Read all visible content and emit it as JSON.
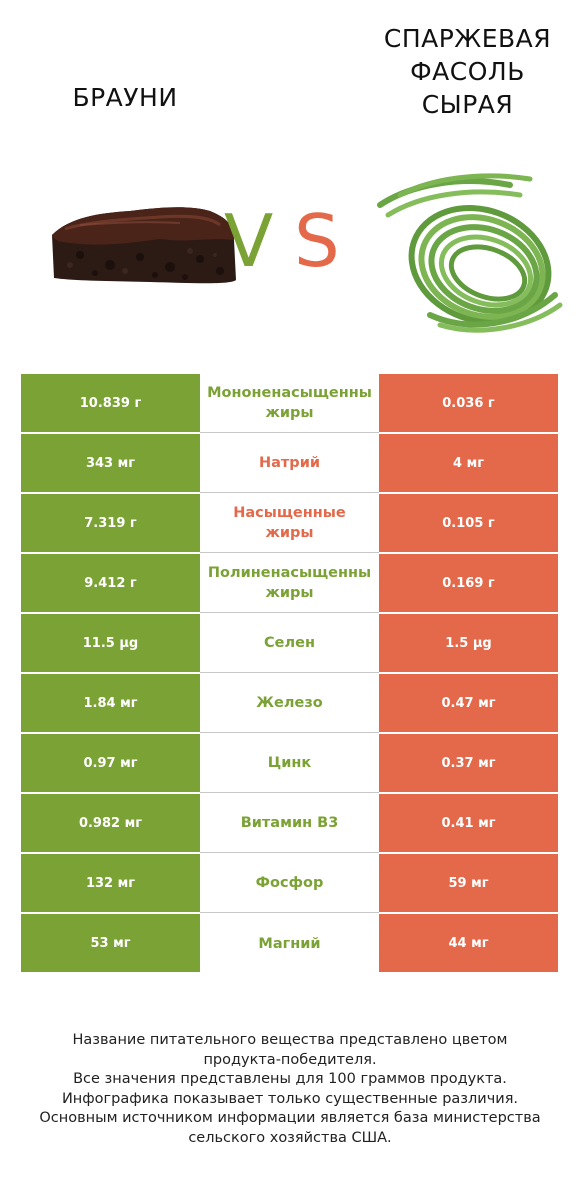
{
  "header": {
    "left_food": "БРАУНИ",
    "right_food_lines": [
      "СПАРЖЕВАЯ",
      "ФАСОЛЬ",
      "СЫРАЯ"
    ],
    "vs_v": "V",
    "vs_s": "S"
  },
  "colors": {
    "left": "#7ba235",
    "right": "#e3694a"
  },
  "chart_data": {
    "type": "table",
    "columns": [
      "БРАУНИ",
      "СПАРЖЕВАЯ ФАСОЛЬ СЫРАЯ"
    ],
    "rows": [
      {
        "left": "10.839 г",
        "nutrient_lines": [
          "Мононенасыщенны",
          "жиры"
        ],
        "right": "0.036 г",
        "winner": "left"
      },
      {
        "left": "343 мг",
        "nutrient_lines": [
          "Натрий"
        ],
        "right": "4 мг",
        "winner": "right"
      },
      {
        "left": "7.319 г",
        "nutrient_lines": [
          "Насыщенные",
          "жиры"
        ],
        "right": "0.105 г",
        "winner": "right"
      },
      {
        "left": "9.412 г",
        "nutrient_lines": [
          "Полиненасыщенны",
          "жиры"
        ],
        "right": "0.169 г",
        "winner": "left"
      },
      {
        "left": "11.5 µg",
        "nutrient_lines": [
          "Селен"
        ],
        "right": "1.5 µg",
        "winner": "left"
      },
      {
        "left": "1.84 мг",
        "nutrient_lines": [
          "Железо"
        ],
        "right": "0.47 мг",
        "winner": "left"
      },
      {
        "left": "0.97 мг",
        "nutrient_lines": [
          "Цинк"
        ],
        "right": "0.37 мг",
        "winner": "left"
      },
      {
        "left": "0.982 мг",
        "nutrient_lines": [
          "Витамин B3"
        ],
        "right": "0.41 мг",
        "winner": "left"
      },
      {
        "left": "132 мг",
        "nutrient_lines": [
          "Фосфор"
        ],
        "right": "59 мг",
        "winner": "left"
      },
      {
        "left": "53 мг",
        "nutrient_lines": [
          "Магний"
        ],
        "right": "44 мг",
        "winner": "left"
      }
    ]
  },
  "footer": {
    "lines": [
      "Название питательного вещества представлено цветом",
      "продукта-победителя.",
      "Все значения представлены для 100 граммов продукта.",
      "Инфографика показывает только существенные различия.",
      "Основным источником информации является база министерства",
      "сельского хозяйства США."
    ]
  }
}
